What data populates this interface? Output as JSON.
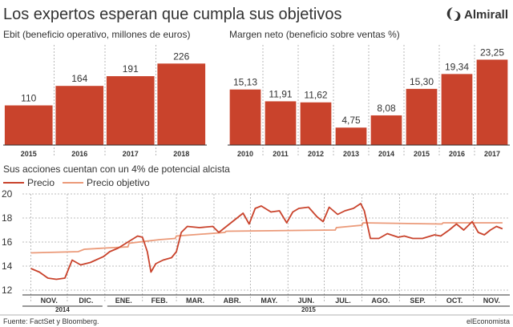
{
  "header": {
    "title": "Los expertos esperan que cumpla sus objetivos",
    "brand": "Almirall"
  },
  "colors": {
    "bar": "#c9432c",
    "price": "#c9432c",
    "target": "#eb9a79",
    "grid": "#a8a8a8",
    "text": "#333333"
  },
  "chart_data": [
    {
      "type": "bar",
      "title": "Ebit (beneficio operativo, millones de euros)",
      "categories": [
        "2015",
        "2016",
        "2017",
        "2018"
      ],
      "values": [
        110,
        164,
        191,
        226
      ],
      "value_labels": [
        "110",
        "164",
        "191",
        "226"
      ],
      "ylim": [
        0,
        240
      ],
      "grid": "vertical dashed separators"
    },
    {
      "type": "bar",
      "title": "Margen neto (beneficio sobre ventas %)",
      "categories": [
        "2010",
        "2011",
        "2012",
        "2013",
        "2014",
        "2015",
        "2016",
        "2017"
      ],
      "values": [
        15.13,
        11.91,
        11.62,
        4.75,
        8.08,
        15.3,
        19.34,
        23.25
      ],
      "value_labels": [
        "15,13",
        "11,91",
        "11,62",
        "4,75",
        "8,08",
        "15,30",
        "19,34",
        "23,25"
      ],
      "ylim": [
        0,
        24
      ],
      "grid": "vertical dashed separators"
    },
    {
      "type": "line",
      "title": "Sus acciones cuentan con un 4% de potencial alcista",
      "ylim": [
        12,
        20
      ],
      "yticks": [
        "12",
        "14",
        "16",
        "18",
        "20"
      ],
      "x_months": [
        "NOV.",
        "DIC.",
        "ENE.",
        "FEB.",
        "MAR.",
        "ABR.",
        "MAY.",
        "JUN.",
        "JUL.",
        "AGO.",
        "SEP.",
        "OCT.",
        "NOV."
      ],
      "x_years": [
        "2014",
        "2015"
      ],
      "legend": "top-left",
      "series": [
        {
          "name": "Precio",
          "x": [
            "2014-11-01",
            "2014-11-08",
            "2014-11-15",
            "2014-11-22",
            "2014-11-29",
            "2014-12-05",
            "2014-12-12",
            "2014-12-20",
            "2014-12-31",
            "2015-01-05",
            "2015-01-12",
            "2015-01-20",
            "2015-01-28",
            "2015-02-01",
            "2015-02-05",
            "2015-02-08",
            "2015-02-12",
            "2015-02-18",
            "2015-02-25",
            "2015-03-01",
            "2015-03-05",
            "2015-03-10",
            "2015-03-20",
            "2015-03-31",
            "2015-04-05",
            "2015-04-15",
            "2015-04-25",
            "2015-04-30",
            "2015-05-05",
            "2015-05-10",
            "2015-05-18",
            "2015-05-25",
            "2015-05-31",
            "2015-06-05",
            "2015-06-10",
            "2015-06-18",
            "2015-06-25",
            "2015-06-30",
            "2015-07-05",
            "2015-07-12",
            "2015-07-18",
            "2015-07-25",
            "2015-07-31",
            "2015-08-03",
            "2015-08-08",
            "2015-08-15",
            "2015-08-22",
            "2015-08-31",
            "2015-09-05",
            "2015-09-12",
            "2015-09-20",
            "2015-09-30",
            "2015-10-05",
            "2015-10-12",
            "2015-10-18",
            "2015-10-24",
            "2015-10-31",
            "2015-11-05",
            "2015-11-10",
            "2015-11-15",
            "2015-11-20",
            "2015-11-25"
          ],
          "values": [
            13.8,
            13.5,
            13.0,
            12.9,
            13.0,
            14.5,
            14.1,
            14.3,
            14.8,
            15.2,
            15.5,
            16.0,
            16.5,
            16.4,
            15.2,
            13.5,
            14.2,
            14.5,
            14.7,
            15.2,
            16.8,
            17.3,
            17.2,
            17.3,
            16.8,
            17.6,
            18.4,
            17.5,
            18.8,
            19.0,
            18.5,
            18.6,
            17.6,
            18.5,
            18.8,
            18.9,
            18.1,
            17.7,
            18.9,
            18.3,
            18.6,
            18.8,
            19.2,
            18.6,
            16.3,
            16.3,
            16.7,
            16.4,
            16.5,
            16.3,
            16.3,
            16.6,
            16.5,
            17.0,
            17.5,
            17.0,
            17.7,
            16.8,
            16.6,
            17.0,
            17.3,
            17.1
          ]
        },
        {
          "name": "Precio objetivo",
          "x": [
            "2014-11-01",
            "2014-12-10",
            "2014-12-15",
            "2015-01-01",
            "2015-01-20",
            "2015-01-21",
            "2015-02-15",
            "2015-02-28",
            "2015-03-01",
            "2015-04-10",
            "2015-04-11",
            "2015-07-10",
            "2015-07-11",
            "2015-08-01",
            "2015-08-02",
            "2015-10-06",
            "2015-10-07",
            "2015-11-25"
          ],
          "values": [
            15.1,
            15.2,
            15.4,
            15.5,
            15.6,
            15.9,
            16.2,
            16.3,
            16.5,
            16.8,
            16.9,
            17.0,
            17.2,
            17.4,
            17.6,
            17.5,
            17.6,
            17.6
          ]
        }
      ]
    }
  ],
  "footer": {
    "source": "Fuente: FactSet y Bloomberg.",
    "publisher": "elEconomista"
  }
}
